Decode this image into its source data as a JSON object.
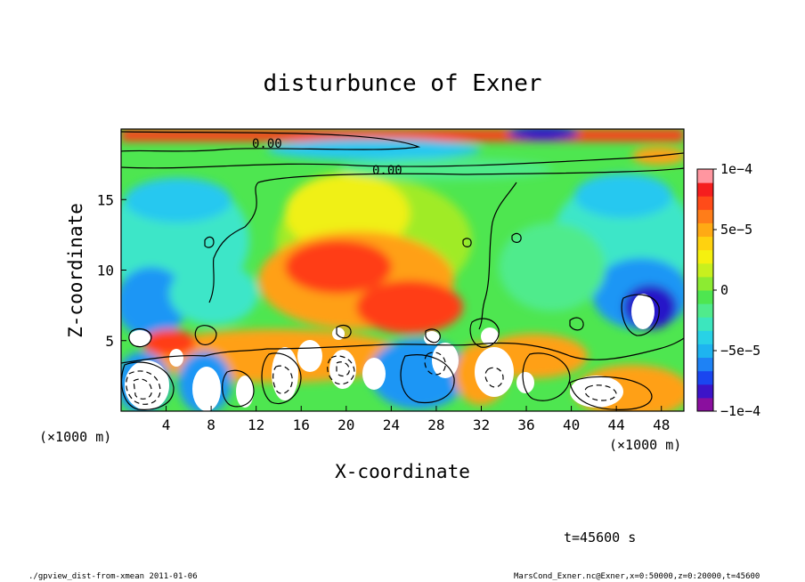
{
  "chart_data": {
    "type": "heatmap",
    "title": "disturbunce of Exner",
    "xlabel": "X-coordinate",
    "ylabel": "Z-coordinate",
    "x_unit": "(×1000 m)",
    "x_unit_right": "(×1000 m)",
    "xlim": [
      0,
      50
    ],
    "ylim": [
      0,
      20
    ],
    "x_ticks": [
      4,
      8,
      12,
      16,
      20,
      24,
      28,
      32,
      36,
      40,
      44,
      48
    ],
    "y_ticks": [
      5,
      10,
      15
    ],
    "colorbar": {
      "range": [
        -0.0001,
        0.0001
      ],
      "tick_labels": [
        "1e−4",
        "5e−5",
        "0",
        "−5e−5",
        "−1e−4"
      ],
      "tick_values": [
        0.0001,
        5e-05,
        0,
        -5e-05,
        -0.0001
      ],
      "colors": [
        "#8a0f9e",
        "#3c14c8",
        "#1a46f0",
        "#1e82f5",
        "#1eb4f0",
        "#28d2e6",
        "#3ce6be",
        "#50eb8c",
        "#4ee650",
        "#8ceb32",
        "#c8f01e",
        "#f5f00f",
        "#ffd20f",
        "#ffaa14",
        "#ff7d19",
        "#ff4b19",
        "#f51e1e",
        "#ff96a0"
      ]
    },
    "contour_labels": [
      "0.00",
      "0.00"
    ],
    "annotations": {
      "time": "t=45600 s",
      "footer_left": "./gpview_dist-from-xmean  2011-01-06",
      "footer_right": "MarsCond_Exner.nc@Exner,x=0:50000,z=0:20000,t=45600"
    },
    "grid": false
  }
}
